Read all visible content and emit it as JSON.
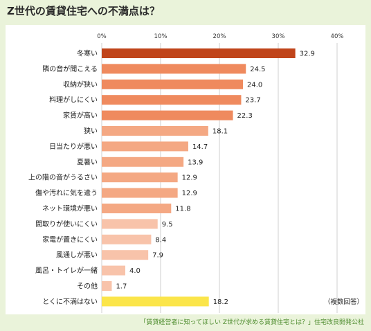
{
  "title": "Z世代の賃貸住宅への不満点は？",
  "footer": "「賃貸経営者に知ってほしい Z世代が求める賃貸住宅とは？」住宅改良開発公社",
  "note": "（複数回答）",
  "colors": {
    "top": "#c0441a",
    "high": "#ef8a5e",
    "mid": "#f4a883",
    "low": "#f8c3aa",
    "special": "#fbe54a",
    "grid": "#cfcfcf"
  },
  "chart_data": {
    "type": "bar",
    "orientation": "horizontal",
    "xlim": [
      0,
      40
    ],
    "xticks": [
      "0%",
      "10%",
      "20%",
      "30%",
      "40%"
    ],
    "categories": [
      "冬寒い",
      "隣の音が聞こえる",
      "収納が狭い",
      "料理がしにくい",
      "家賃が高い",
      "狭い",
      "日当たりが悪い",
      "夏暑い",
      "上の階の音がうるさい",
      "傷や汚れに気を遣う",
      "ネット環境が悪い",
      "間取りが使いにくい",
      "家電が置きにくい",
      "風通しが悪い",
      "風呂・トイレが一緒",
      "その他",
      "とくに不満はない"
    ],
    "values": [
      32.9,
      24.5,
      24.0,
      23.7,
      22.3,
      18.1,
      14.7,
      13.9,
      12.9,
      12.9,
      11.8,
      9.5,
      8.4,
      7.9,
      4.0,
      1.7,
      18.2
    ],
    "value_labels": [
      "32.9",
      "24.5",
      "24.0",
      "23.7",
      "22.3",
      "18.1",
      "14.7",
      "13.9",
      "12.9",
      "12.9",
      "11.8",
      "9.5",
      "8.4",
      "7.9",
      "4.0",
      "1.7",
      "18.2"
    ],
    "grid": true,
    "legend": "none"
  }
}
